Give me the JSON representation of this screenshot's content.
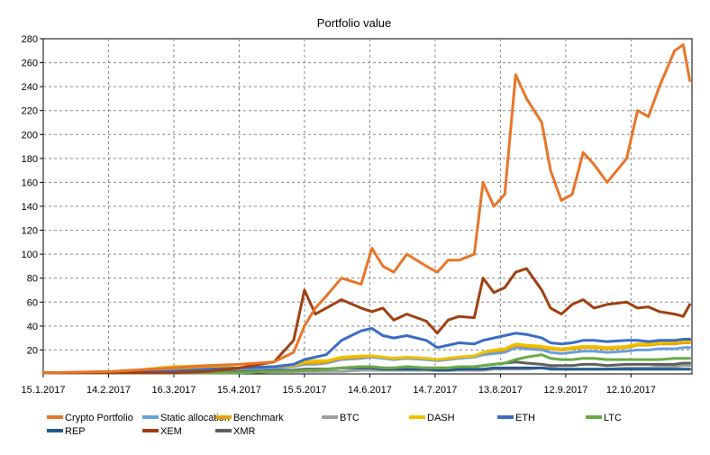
{
  "chart_data": {
    "type": "line",
    "title": "Portfolio value",
    "xlabel": "",
    "ylabel": "",
    "ylim": [
      0,
      280
    ],
    "yticks": [
      20,
      40,
      60,
      80,
      100,
      120,
      140,
      160,
      180,
      200,
      220,
      240,
      260,
      280
    ],
    "x_tick_labels": [
      "15.1.2017",
      "14.2.2017",
      "16.3.2017",
      "15.4.2017",
      "15.5.2017",
      "14.6.2017",
      "14.7.2017",
      "13.8.2017",
      "12.9.2017",
      "12.10.2017"
    ],
    "x_tick_days": [
      0,
      30,
      60,
      90,
      120,
      150,
      180,
      210,
      240,
      270
    ],
    "x": [
      "2017-01-15",
      "2017-02-15",
      "2017-03-15",
      "2017-04-01",
      "2017-04-15",
      "2017-05-01",
      "2017-05-10",
      "2017-05-15",
      "2017-05-20",
      "2017-05-25",
      "2017-06-01",
      "2017-06-10",
      "2017-06-15",
      "2017-06-20",
      "2017-06-25",
      "2017-07-01",
      "2017-07-10",
      "2017-07-15",
      "2017-07-20",
      "2017-07-25",
      "2017-08-01",
      "2017-08-05",
      "2017-08-10",
      "2017-08-15",
      "2017-08-20",
      "2017-08-25",
      "2017-09-01",
      "2017-09-05",
      "2017-09-10",
      "2017-09-15",
      "2017-09-20",
      "2017-09-25",
      "2017-10-01",
      "2017-10-10",
      "2017-10-15",
      "2017-10-20",
      "2017-10-25",
      "2017-11-01",
      "2017-11-05",
      "2017-11-08"
    ],
    "series": [
      {
        "name": "Crypto Portfolio",
        "color": "#e8752a",
        "values": [
          1,
          2,
          5,
          7,
          8,
          10,
          18,
          40,
          55,
          65,
          80,
          75,
          105,
          90,
          85,
          100,
          90,
          85,
          95,
          95,
          100,
          160,
          140,
          150,
          250,
          230,
          210,
          170,
          145,
          150,
          185,
          175,
          160,
          180,
          220,
          215,
          240,
          270,
          275,
          245
        ]
      },
      {
        "name": "Static allocation",
        "color": "#6aa0dc",
        "values": [
          1,
          1,
          3,
          4,
          4,
          5,
          6,
          8,
          8,
          9,
          12,
          13,
          14,
          13,
          12,
          13,
          12,
          11,
          12,
          13,
          14,
          16,
          17,
          18,
          22,
          21,
          20,
          18,
          17,
          18,
          19,
          19,
          18,
          19,
          20,
          20,
          21,
          21,
          22,
          22
        ]
      },
      {
        "name": "Benchmark",
        "color": "#e8a500",
        "values": [
          1,
          1,
          5,
          5,
          5,
          6,
          7,
          9,
          9,
          10,
          13,
          14,
          15,
          14,
          13,
          14,
          13,
          12,
          13,
          14,
          15,
          18,
          19,
          20,
          24,
          23,
          22,
          21,
          20,
          21,
          22,
          22,
          21,
          22,
          24,
          24,
          25,
          25,
          26,
          26
        ]
      },
      {
        "name": "BTC",
        "color": "#a0a0a0",
        "values": [
          1,
          1,
          1,
          1,
          1,
          2,
          2,
          2,
          2,
          2,
          2,
          3,
          3,
          3,
          3,
          3,
          3,
          3,
          3,
          3,
          3,
          3,
          4,
          4,
          4,
          4,
          5,
          5,
          4,
          4,
          4,
          4,
          4,
          5,
          5,
          5,
          6,
          6,
          7,
          7
        ]
      },
      {
        "name": "DASH",
        "color": "#f0c000",
        "values": [
          1,
          1,
          6,
          7,
          5,
          6,
          7,
          10,
          11,
          11,
          14,
          15,
          15,
          14,
          13,
          14,
          13,
          12,
          13,
          14,
          15,
          18,
          20,
          21,
          25,
          24,
          23,
          22,
          21,
          22,
          23,
          23,
          22,
          23,
          25,
          25,
          26,
          27,
          28,
          28
        ]
      },
      {
        "name": "ETH",
        "color": "#3a6cc6",
        "values": [
          1,
          1,
          2,
          4,
          5,
          6,
          8,
          12,
          14,
          16,
          28,
          36,
          38,
          32,
          30,
          32,
          28,
          22,
          24,
          26,
          25,
          28,
          30,
          32,
          34,
          33,
          30,
          26,
          25,
          26,
          28,
          28,
          27,
          28,
          28,
          27,
          28,
          28,
          29,
          29
        ]
      },
      {
        "name": "LTC",
        "color": "#6aaa46",
        "values": [
          1,
          1,
          1,
          1,
          1,
          2,
          2,
          3,
          3,
          4,
          5,
          6,
          6,
          5,
          5,
          6,
          5,
          5,
          5,
          6,
          6,
          7,
          8,
          9,
          12,
          14,
          16,
          13,
          12,
          12,
          13,
          13,
          12,
          12,
          12,
          12,
          12,
          13,
          13,
          13
        ]
      },
      {
        "name": "REP",
        "color": "#245a8c",
        "values": [
          1,
          1,
          1,
          2,
          2,
          2,
          3,
          4,
          4,
          4,
          5,
          5,
          5,
          4,
          4,
          4,
          4,
          3,
          3,
          4,
          4,
          4,
          5,
          5,
          5,
          5,
          5,
          4,
          4,
          4,
          4,
          4,
          4,
          4,
          4,
          4,
          4,
          4,
          4,
          4
        ]
      },
      {
        "name": "XEM",
        "color": "#a04010",
        "values": [
          1,
          1,
          1,
          2,
          5,
          10,
          28,
          70,
          50,
          55,
          62,
          55,
          52,
          55,
          45,
          50,
          44,
          34,
          45,
          48,
          47,
          80,
          68,
          72,
          85,
          88,
          70,
          55,
          50,
          58,
          62,
          55,
          58,
          60,
          55,
          56,
          52,
          50,
          48,
          58
        ]
      },
      {
        "name": "XMR",
        "color": "#606060",
        "values": [
          1,
          1,
          1,
          2,
          2,
          3,
          3,
          4,
          4,
          4,
          5,
          6,
          6,
          5,
          5,
          6,
          5,
          5,
          5,
          6,
          6,
          7,
          8,
          9,
          10,
          9,
          8,
          7,
          7,
          7,
          8,
          8,
          7,
          8,
          8,
          8,
          8,
          8,
          9,
          9
        ]
      }
    ]
  }
}
